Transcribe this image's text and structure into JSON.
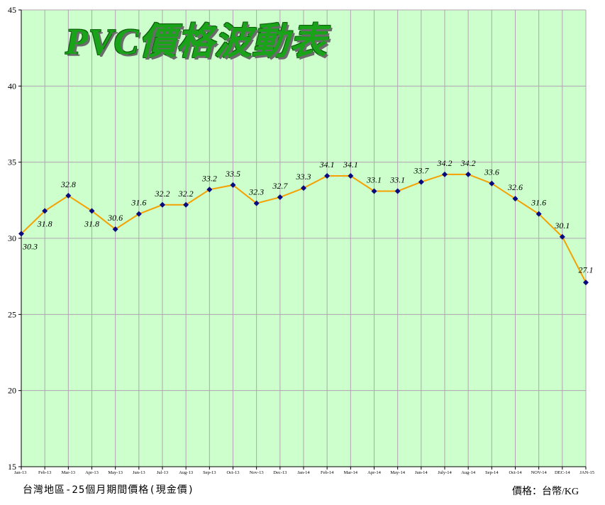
{
  "chart_data": {
    "type": "line",
    "title": "PVC價格波動表",
    "categories": [
      "Jan-13",
      "Feb-13",
      "Mar-13",
      "Apr-13",
      "May-13",
      "Jun-13",
      "Jul-13",
      "Aug-13",
      "Sep-13",
      "Oct-13",
      "Nov-13",
      "Dec-13",
      "Jan-14",
      "Feb-14",
      "Mar-14",
      "Apr-14",
      "May-14",
      "Jun-14",
      "July-14",
      "Aug-14",
      "Sep-14",
      "Oct-14",
      "NOV-14",
      "DEC-14",
      "JAN-15"
    ],
    "series": [
      {
        "values": [
          30.3,
          31.8,
          32.8,
          31.8,
          30.6,
          31.6,
          32.2,
          32.2,
          33.2,
          33.5,
          32.3,
          32.7,
          33.3,
          34.1,
          34.1,
          33.1,
          33.1,
          33.7,
          34.2,
          34.2,
          33.6,
          32.6,
          31.6,
          30.1,
          27.1
        ],
        "labels": [
          "30.3",
          "31.8",
          "32.8",
          "31.8",
          "30.6",
          "31.6",
          "32.2",
          "32.2",
          "33.2",
          "33.5",
          "32.3",
          "32.7",
          "33.3",
          "34.1",
          "34.1",
          "33.1",
          "33.1",
          "33.7",
          "34.2",
          "34.2",
          "33.6",
          "32.6",
          "31.6",
          "30.1",
          "27.1"
        ],
        "line_color": "#f5a000",
        "marker_color": "#0a0a80"
      }
    ],
    "ylim": [
      15,
      45
    ],
    "yticks": [
      "15",
      "20",
      "25",
      "30",
      "35",
      "40",
      "45"
    ],
    "grid": true,
    "plot_background": "#ccffcc",
    "grid_color": "#b3a3b3"
  },
  "footer": {
    "left": "台灣地區-25個月期間價格(現金價)",
    "right": "價格：台幣/KG"
  }
}
